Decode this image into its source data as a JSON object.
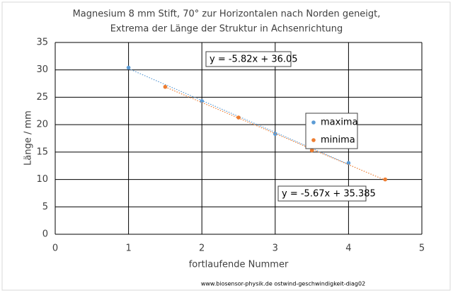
{
  "chart_data": {
    "type": "scatter",
    "title": [
      "Magnesium 8 mm Stift, 70° zur Horizontalen nach Norden geneigt,",
      "Extrema der Länge der Struktur in Achsenrichtung"
    ],
    "x_label": "fortlaufende Nummer",
    "y_label": "Länge / mm",
    "xlim": [
      0,
      5
    ],
    "xticks": [
      0,
      1,
      2,
      3,
      4,
      5
    ],
    "ylim": [
      0,
      35
    ],
    "yticks": [
      0,
      5,
      10,
      15,
      20,
      25,
      30,
      35
    ],
    "grid": true,
    "legend": "right",
    "series": [
      {
        "name": "maxima",
        "color": "#5b9bd5",
        "x": [
          1,
          2,
          3,
          4
        ],
        "values": [
          30.4,
          24.3,
          18.3,
          13.0
        ],
        "trendline": {
          "slope": -5.82,
          "intercept": 36.05,
          "label": "y = -5.82x + 36.05"
        }
      },
      {
        "name": "minima",
        "color": "#ed7d31",
        "x": [
          1.5,
          2.5,
          3.5,
          4.5
        ],
        "values": [
          26.9,
          21.3,
          15.3,
          10.0
        ],
        "trendline": {
          "slope": -5.67,
          "intercept": 35.385,
          "label": "y = -5.67x + 35.385"
        }
      }
    ],
    "footer": "www.biosensor-physik.de  ostwind-geschwindigkeit-diag02"
  }
}
